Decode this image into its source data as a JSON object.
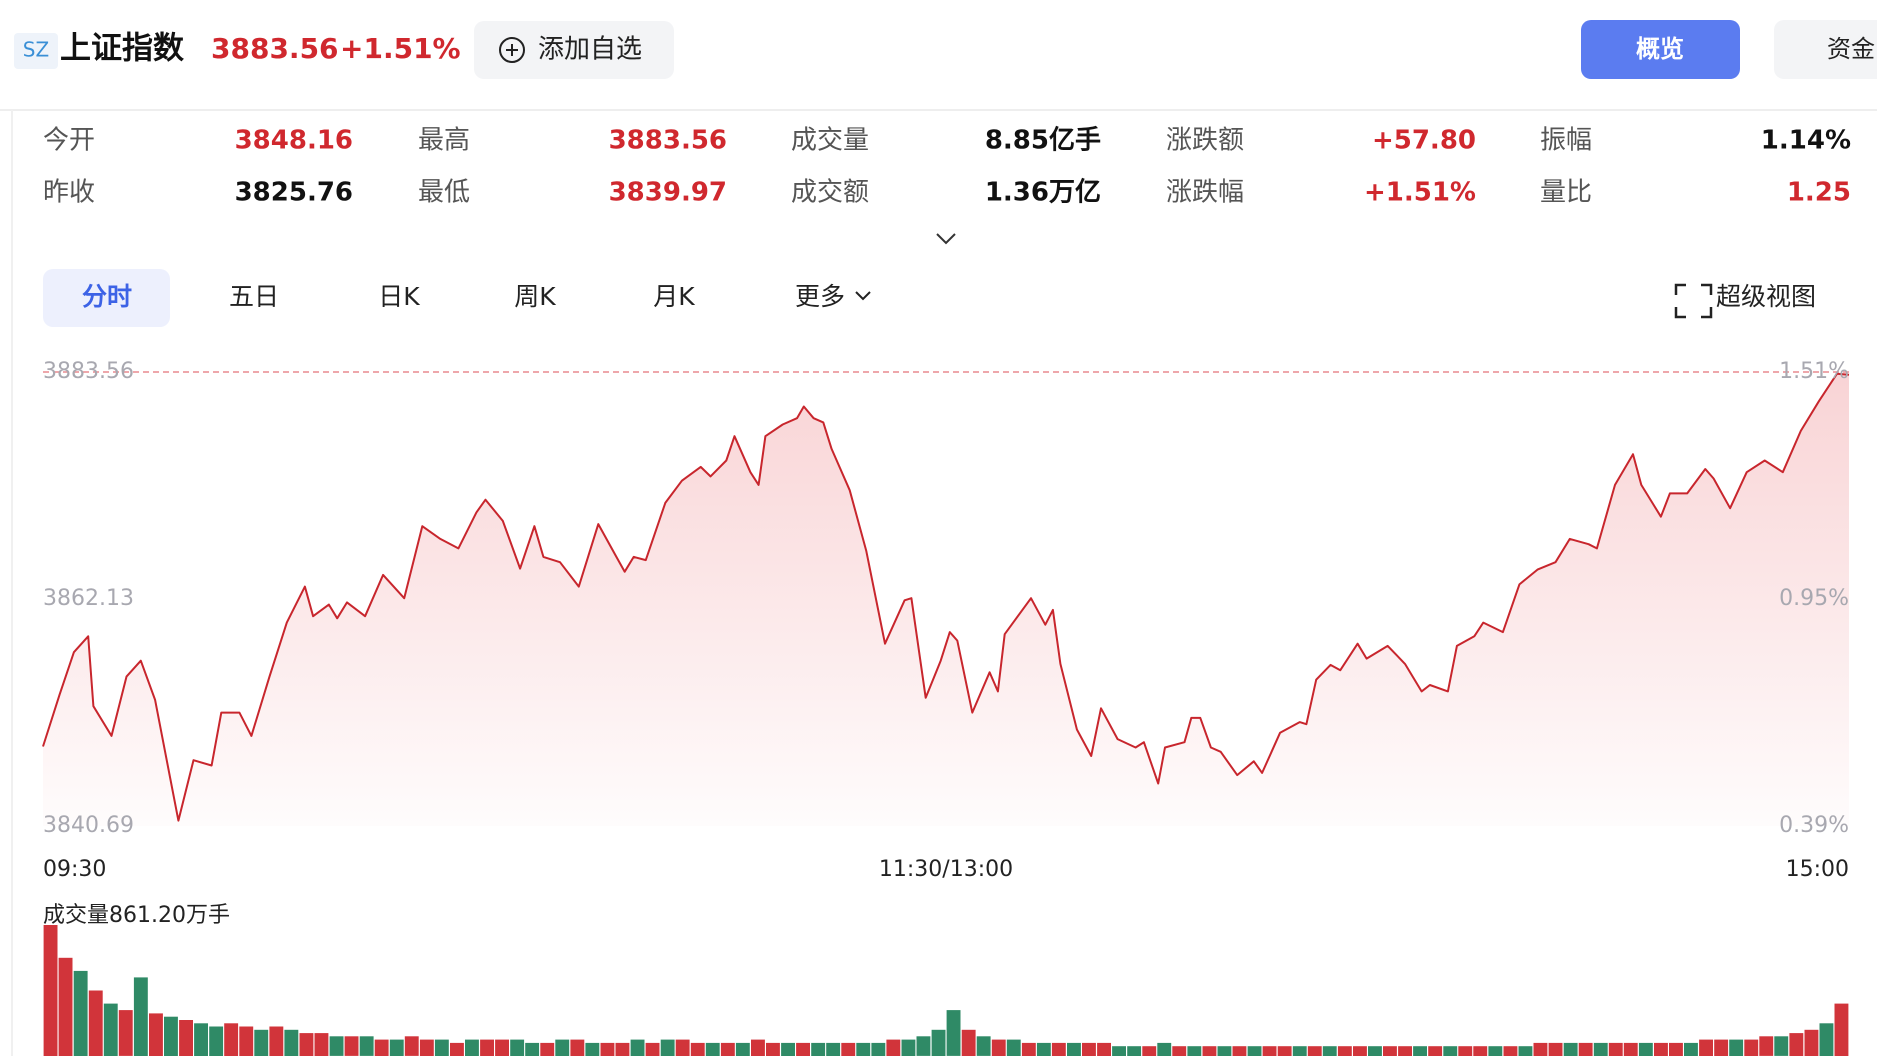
{
  "header": {
    "badge": "SZ",
    "name": "上证指数",
    "price": "3883.56",
    "change": "+1.51%",
    "add_button": "添加自选",
    "tabs": [
      "概览",
      "资金"
    ]
  },
  "stats": [
    {
      "label": "今开",
      "value": "3848.16",
      "tone": "up"
    },
    {
      "label": "最高",
      "value": "3883.56",
      "tone": "up"
    },
    {
      "label": "成交量",
      "value": "8.85亿手",
      "tone": "flat"
    },
    {
      "label": "涨跌额",
      "value": "+57.80",
      "tone": "up"
    },
    {
      "label": "振幅",
      "value": "1.14%",
      "tone": "flat"
    },
    {
      "label": "昨收",
      "value": "3825.76",
      "tone": "flat"
    },
    {
      "label": "最低",
      "value": "3839.97",
      "tone": "up"
    },
    {
      "label": "成交额",
      "value": "1.36万亿",
      "tone": "flat"
    },
    {
      "label": "涨跌幅",
      "value": "+1.51%",
      "tone": "up"
    },
    {
      "label": "量比",
      "value": "1.25",
      "tone": "up"
    }
  ],
  "chart_tabs": [
    "分时",
    "五日",
    "日K",
    "周K",
    "月K",
    "更多"
  ],
  "super_view": "超级视图",
  "chart_data": {
    "type": "line",
    "x": [
      0,
      2.2,
      4.1,
      6.0,
      6.7,
      9.1,
      11.1,
      13.0,
      14.9,
      16.9,
      18.0,
      20.0,
      22.4,
      23.7,
      26.1,
      27.7,
      30.1,
      32.4,
      34.8,
      35.9,
      38.0,
      39.1,
      40.4,
      42.8,
      45.2,
      48.0,
      50.4,
      52.8,
      55.2,
      57.6,
      58.8,
      61.1,
      63.4,
      65.3,
      66.5,
      68.7,
      71.2,
      73.8,
      76.2,
      77.3,
      78.5,
      80.1,
      82.7,
      84.9,
      87.4,
      88.7,
      90.8,
      91.9,
      94.0,
      95.1,
      96.0,
      98.3,
      100.2,
      101.1,
      102.4,
      103.7,
      104.8,
      107.2,
      109.4,
      111.9,
      114.5,
      115.4,
      117.3,
      119.3,
      120.5,
      121.5,
      123.5,
      125.8,
      126.9,
      127.8,
      131.3,
      133.2,
      134.2,
      135.2,
      137.4,
      139.3,
      140.6,
      142.8,
      145.2,
      146.3,
      148.2,
      149.1,
      151.7,
      152.6,
      153.8,
      155.2,
      156.5,
      158.7,
      160.9,
      162.0,
      164.4,
      167.0,
      167.9,
      169.2,
      171.1,
      172.4,
      174.7,
      175.9,
      178.7,
      181.0,
      183.2,
      184.3,
      186.7,
      187.9,
      190.2,
      191.4,
      194.0,
      196.2,
      198.6,
      201.0,
      202.9,
      205.4,
      206.5,
      208.9,
      211.3,
      212.4,
      215.0,
      216.2,
      218.5,
      220.9,
      222.0,
      224.2,
      226.4,
      228.8,
      231.2,
      233.6,
      236.0,
      238.4,
      240
    ],
    "series": [
      {
        "color": "#c8262d",
        "values": [
          3848.2,
          3853.1,
          3857.1,
          3858.6,
          3852.0,
          3849.2,
          3854.8,
          3856.3,
          3852.6,
          3845.2,
          3841.2,
          3846.9,
          3846.4,
          3851.4,
          3851.4,
          3849.2,
          3854.8,
          3859.9,
          3863.3,
          3860.5,
          3861.6,
          3860.3,
          3861.8,
          3860.5,
          3864.4,
          3862.2,
          3869.0,
          3867.8,
          3866.9,
          3870.3,
          3871.5,
          3869.5,
          3865.0,
          3869.0,
          3866.1,
          3865.6,
          3863.3,
          3869.2,
          3866.1,
          3864.7,
          3866.1,
          3865.8,
          3871.2,
          3873.3,
          3874.6,
          3873.7,
          3875.2,
          3877.5,
          3874.1,
          3872.9,
          3877.5,
          3878.6,
          3879.2,
          3880.3,
          3879.2,
          3878.8,
          3876.3,
          3872.4,
          3866.7,
          3857.9,
          3862.0,
          3862.2,
          3852.8,
          3856.3,
          3859.0,
          3858.2,
          3851.4,
          3855.2,
          3853.4,
          3858.8,
          3862.2,
          3859.7,
          3861.1,
          3856.0,
          3849.8,
          3847.3,
          3851.8,
          3848.9,
          3848.1,
          3848.6,
          3844.7,
          3848.1,
          3848.6,
          3850.9,
          3850.9,
          3848.1,
          3847.7,
          3845.5,
          3846.8,
          3845.7,
          3849.5,
          3850.5,
          3850.3,
          3854.5,
          3855.9,
          3855.4,
          3857.9,
          3856.5,
          3857.7,
          3856.0,
          3853.4,
          3854.0,
          3853.4,
          3857.7,
          3858.6,
          3859.9,
          3859.0,
          3863.5,
          3864.9,
          3865.6,
          3867.8,
          3867.3,
          3866.9,
          3872.9,
          3875.8,
          3872.9,
          3869.9,
          3872.1,
          3872.1,
          3874.4,
          3873.5,
          3870.7,
          3874.1,
          3875.2,
          3874.1,
          3878.0,
          3880.8,
          3883.4,
          3883.3
        ]
      }
    ],
    "xlim": [
      0,
      240
    ],
    "xticks": [
      {
        "value": 0,
        "label": "09:30"
      },
      {
        "value": 120,
        "label": "11:30/13:00"
      },
      {
        "value": 240,
        "label": "15:00"
      }
    ],
    "ylim": [
      3840.69,
      3883.56
    ],
    "yticks": [
      3840.69,
      3862.13,
      3883.56
    ],
    "y2lim": [
      0.39,
      1.51
    ],
    "y2ticks": [
      {
        "value": 0.39,
        "label": "0.39%"
      },
      {
        "value": 0.95,
        "label": "0.95%"
      },
      {
        "value": 1.51,
        "label": "1.51%"
      }
    ],
    "ref_line": 3883.56,
    "volume": {
      "label": "成交量861.20万手",
      "up_color": "#d1343a",
      "down_color": "#2f8a66",
      "values": [
        40,
        30,
        26,
        20,
        16,
        14,
        24,
        13,
        12,
        11,
        10,
        9,
        10,
        9,
        8,
        9,
        8,
        7,
        7,
        6,
        6,
        6,
        5,
        5,
        6,
        5,
        5,
        4,
        5,
        5,
        5,
        5,
        4,
        4,
        5,
        5,
        4,
        4,
        4,
        5,
        4,
        5,
        5,
        4,
        4,
        4,
        4,
        5,
        4,
        4,
        4,
        4,
        4,
        4,
        4,
        4,
        5,
        5,
        6,
        8,
        14,
        8,
        6,
        5,
        5,
        4,
        4,
        4,
        4,
        4,
        4,
        3,
        3,
        3,
        4,
        3,
        3,
        3,
        3,
        3,
        3,
        3,
        3,
        3,
        3,
        3,
        3,
        3,
        3,
        3,
        3,
        3,
        3,
        3,
        3,
        3,
        3,
        3,
        3,
        4,
        4,
        4,
        4,
        4,
        4,
        4,
        4,
        4,
        4,
        4,
        5,
        5,
        5,
        5,
        6,
        6,
        7,
        8,
        10,
        16
      ],
      "up": [
        true,
        true,
        false,
        true,
        false,
        true,
        false,
        true,
        false,
        true,
        false,
        false,
        true,
        true,
        false,
        true,
        false,
        true,
        true,
        false,
        true,
        false,
        true,
        false,
        true,
        true,
        false,
        true,
        false,
        true,
        true,
        false,
        false,
        true,
        false,
        true,
        false,
        true,
        true,
        false,
        true,
        false,
        true,
        true,
        false,
        true,
        false,
        true,
        true,
        false,
        true,
        false,
        false,
        true,
        false,
        false,
        true,
        false,
        false,
        false,
        false,
        true,
        false,
        true,
        false,
        true,
        false,
        true,
        false,
        true,
        true,
        false,
        false,
        true,
        false,
        true,
        false,
        true,
        false,
        true,
        false,
        true,
        true,
        false,
        true,
        false,
        true,
        true,
        false,
        true,
        true,
        false,
        true,
        false,
        true,
        true,
        false,
        true,
        false,
        true,
        true,
        false,
        true,
        false,
        true,
        true,
        false,
        true,
        true,
        false,
        true,
        true,
        false,
        true,
        true,
        false,
        true,
        true,
        false,
        true
      ]
    }
  }
}
